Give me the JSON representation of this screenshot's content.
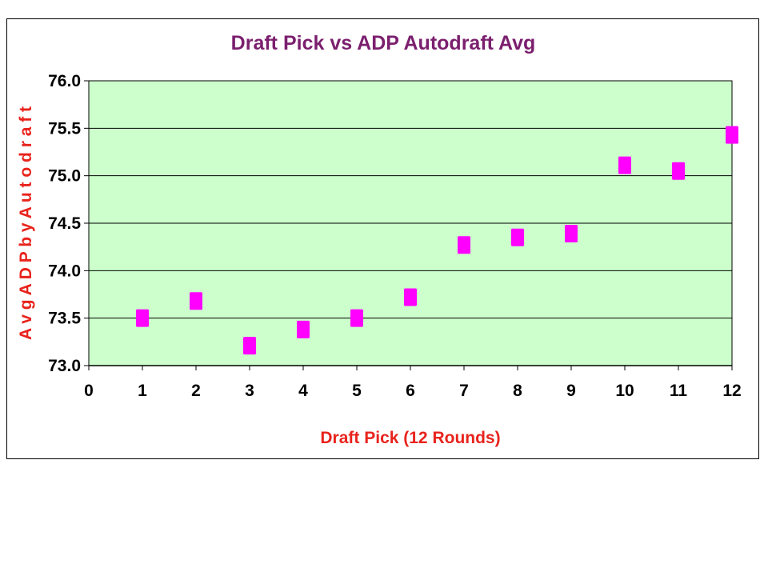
{
  "chart_data": {
    "type": "scatter",
    "title": "Draft Pick vs ADP Autodraft Avg",
    "xlabel": "Draft Pick (12 Rounds)",
    "ylabel": "A v g  A D P  b y  A u t o d r a f t",
    "xlim": [
      0,
      12
    ],
    "ylim": [
      73.0,
      76.0
    ],
    "xticks": [
      "0",
      "1",
      "2",
      "3",
      "4",
      "5",
      "6",
      "7",
      "8",
      "9",
      "10",
      "11",
      "12"
    ],
    "yticks": [
      "73.0",
      "73.5",
      "74.0",
      "74.5",
      "75.0",
      "75.5",
      "76.0"
    ],
    "grid": true,
    "series": [
      {
        "name": "Avg ADP by Autodraft",
        "x": [
          1,
          2,
          3,
          4,
          5,
          6,
          7,
          8,
          9,
          10,
          11,
          12
        ],
        "y": [
          73.5,
          73.68,
          73.21,
          73.38,
          73.5,
          73.72,
          74.27,
          74.35,
          74.39,
          75.11,
          75.05,
          75.43
        ]
      }
    ]
  },
  "colors": {
    "title": "#7b1f6e",
    "axis_title": "#e8231c",
    "plot_background": "#ccffcc",
    "marker": "#ff00ff",
    "gridline": "#000000"
  }
}
